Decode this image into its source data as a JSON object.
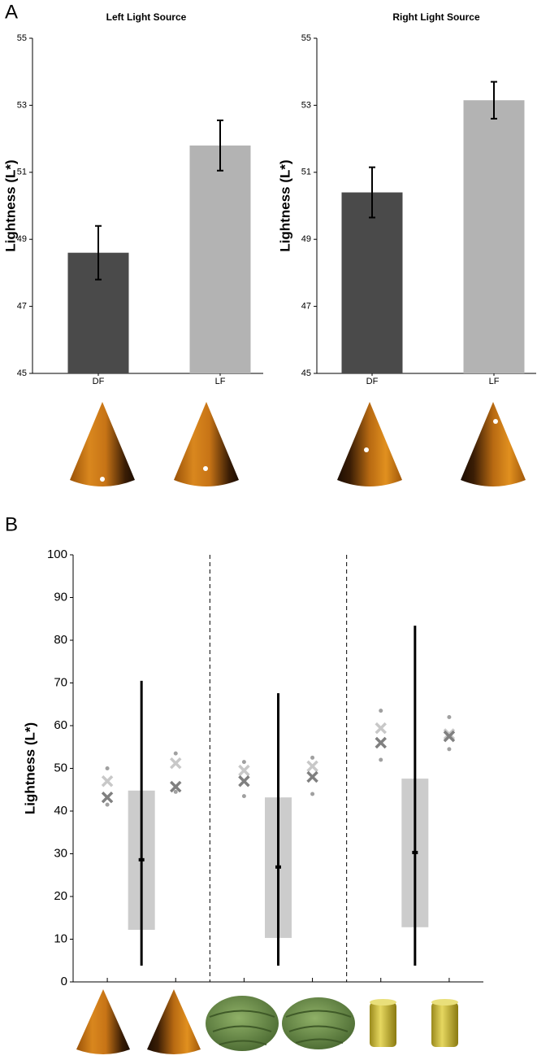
{
  "chart_data": [
    {
      "type": "bar",
      "panel_label": "A",
      "title": "Left Light Source",
      "ylabel": "Lightness (L*)",
      "categories": [
        "DF",
        "LF"
      ],
      "values": [
        48.6,
        51.8
      ],
      "errors": [
        0.8,
        0.75
      ],
      "colors": [
        "#4a4a4a",
        "#b3b3b3"
      ],
      "ylim": [
        45,
        55
      ],
      "yticks": [
        45,
        47,
        49,
        51,
        53,
        55
      ]
    },
    {
      "type": "bar",
      "title": "Right Light Source",
      "ylabel": "Lightness (L*)",
      "categories": [
        "DF",
        "LF"
      ],
      "values": [
        50.4,
        53.15
      ],
      "errors": [
        0.75,
        0.55
      ],
      "colors": [
        "#4a4a4a",
        "#b3b3b3"
      ],
      "ylim": [
        45,
        55
      ],
      "yticks": [
        45,
        47,
        49,
        51,
        53,
        55
      ]
    },
    {
      "type": "range_scatter",
      "panel_label": "B",
      "ylabel": "Lightness (L*)",
      "xlim": [
        0.5,
        6.5
      ],
      "xticks": [
        1,
        2,
        3,
        4,
        5,
        6
      ],
      "separators": [
        2.5,
        4.5
      ],
      "ylim": [
        0,
        100
      ],
      "yticks": [
        0,
        10,
        20,
        30,
        40,
        50,
        60,
        70,
        80,
        90,
        100
      ],
      "series": [
        {
          "marker": "x",
          "color": "#c8c8c8",
          "x": [
            1,
            2,
            3,
            4,
            5,
            6
          ],
          "values": [
            47,
            51.2,
            49.5,
            50.5,
            59.4,
            58
          ]
        },
        {
          "marker": "x",
          "color": "#808080",
          "x": [
            1,
            2,
            3,
            4,
            5,
            6
          ],
          "values": [
            43.2,
            45.7,
            47,
            48,
            56,
            57.5
          ]
        },
        {
          "marker": "dot",
          "color": "#a0a0a0",
          "x": [
            1,
            1,
            2,
            2,
            3,
            3,
            4,
            4,
            5,
            5,
            6,
            6
          ],
          "values": [
            50,
            41.5,
            53.5,
            44.5,
            51.5,
            43.5,
            52.5,
            44,
            63.5,
            52,
            62,
            54.5
          ]
        }
      ],
      "ranges": {
        "color": "#cccccc",
        "x": [
          1.5,
          3.5,
          5.5
        ],
        "box_low": [
          12.2,
          10.3,
          12.8
        ],
        "box_high": [
          44.8,
          43.2,
          47.6
        ],
        "whisker_low": [
          3.8,
          3.8,
          3.8
        ],
        "whisker_high": [
          70.5,
          67.6,
          83.4
        ],
        "mean": [
          28.6,
          26.9,
          30.3
        ]
      }
    }
  ]
}
